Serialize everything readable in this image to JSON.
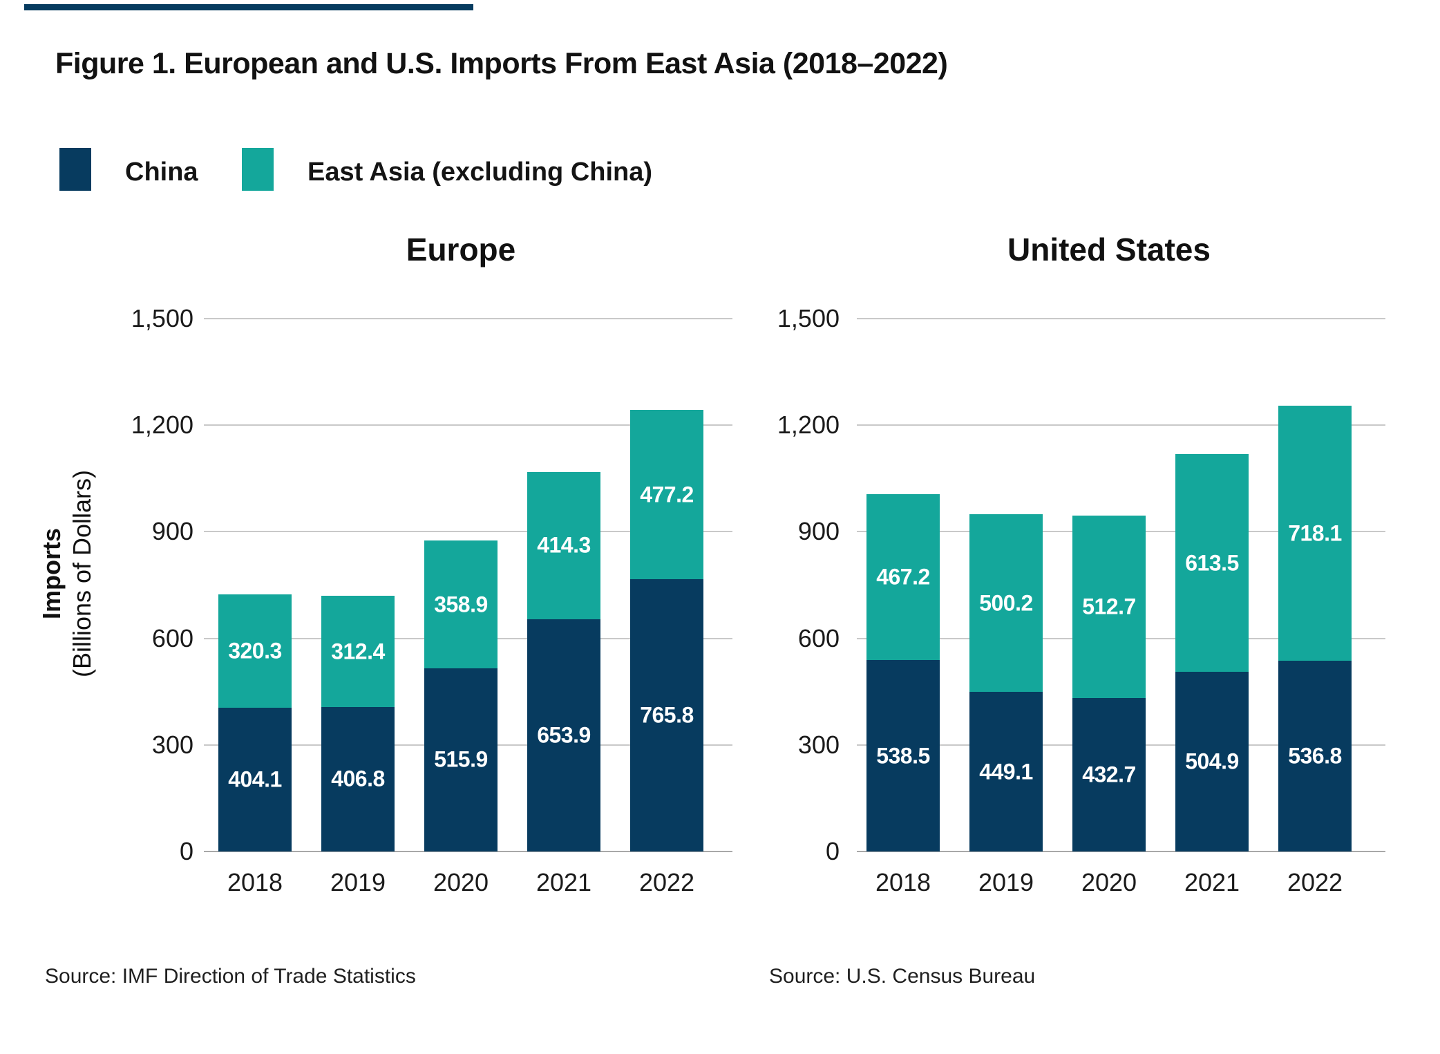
{
  "figure": {
    "title": "Figure 1. European and U.S. Imports From East Asia (2018–2022)",
    "rule_color": "#073B5F"
  },
  "legend": [
    {
      "label": "China",
      "color": "#073B5F"
    },
    {
      "label": "East Asia (excluding China)",
      "color": "#14A79B"
    }
  ],
  "y_axis": {
    "label_line1": "Imports",
    "label_line2": "(Billions of Dollars)",
    "tick_labels": [
      "1,500",
      "1,200",
      "900",
      "600",
      "300",
      "0"
    ],
    "tick_values": [
      1500,
      1200,
      900,
      600,
      300,
      0
    ]
  },
  "chart_data": [
    {
      "type": "bar",
      "stacked": true,
      "title": "Europe",
      "xlabel": "",
      "ylabel": "Imports (Billions of Dollars)",
      "ylim": [
        0,
        1500
      ],
      "grid": true,
      "legend_position": "top-left",
      "categories": [
        "2018",
        "2019",
        "2020",
        "2021",
        "2022"
      ],
      "series": [
        {
          "name": "China",
          "color": "#073B5F",
          "values": [
            404.1,
            406.8,
            515.9,
            653.9,
            765.8
          ]
        },
        {
          "name": "East Asia (excluding China)",
          "color": "#14A79B",
          "values": [
            320.3,
            312.4,
            358.9,
            414.3,
            477.2
          ]
        }
      ],
      "source": "Source: IMF Direction of Trade Statistics"
    },
    {
      "type": "bar",
      "stacked": true,
      "title": "United States",
      "xlabel": "",
      "ylabel": "Imports (Billions of Dollars)",
      "ylim": [
        0,
        1500
      ],
      "grid": true,
      "legend_position": "top-left",
      "categories": [
        "2018",
        "2019",
        "2020",
        "2021",
        "2022"
      ],
      "series": [
        {
          "name": "China",
          "color": "#073B5F",
          "values": [
            538.5,
            449.1,
            432.7,
            504.9,
            536.8
          ]
        },
        {
          "name": "East Asia (excluding China)",
          "color": "#14A79B",
          "values": [
            467.2,
            500.2,
            512.7,
            613.5,
            718.1
          ]
        }
      ],
      "source": "Source: U.S. Census Bureau"
    }
  ]
}
